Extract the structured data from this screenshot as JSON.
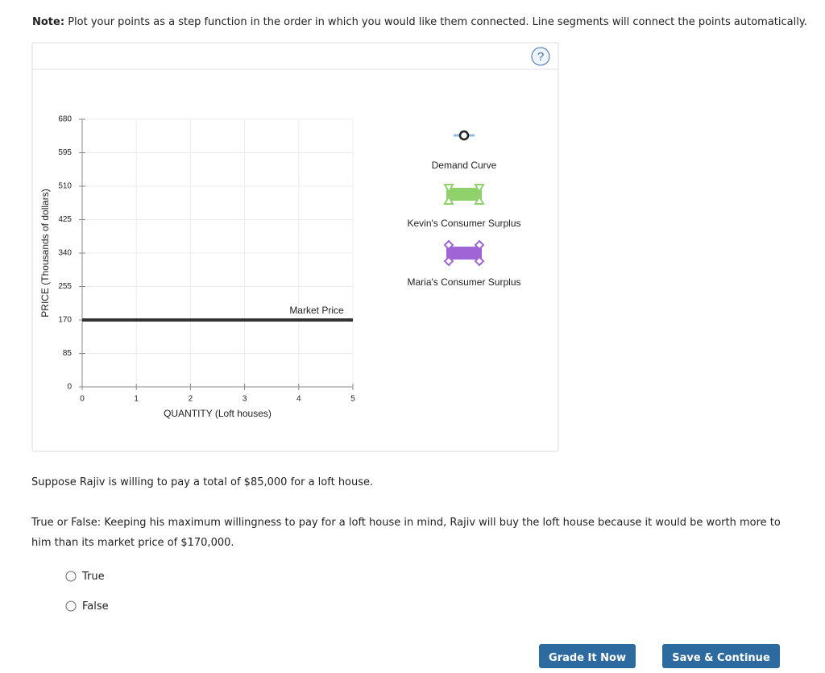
{
  "note": {
    "label": "Note:",
    "text": "Plot your points as a step function in the order in which you would like them connected. Line segments will connect the points automatically."
  },
  "help": "?",
  "chart_data": {
    "type": "line",
    "xlabel": "QUANTITY (Loft houses)",
    "ylabel": "PRICE (Thousands of dollars)",
    "x": [
      0,
      5
    ],
    "series": [
      {
        "name": "Market Price",
        "color": "#333333",
        "values": [
          170,
          170
        ]
      }
    ],
    "xlim": [
      0,
      5
    ],
    "xticks": [
      0,
      1,
      2,
      3,
      4,
      5
    ],
    "ylim": [
      0,
      680
    ],
    "yticks": [
      0,
      85,
      170,
      255,
      340,
      425,
      510,
      595,
      680
    ],
    "grid": true
  },
  "tools": [
    {
      "label": "Demand Curve"
    },
    {
      "label": "Kevin's Consumer Surplus"
    },
    {
      "label": "Maria's Consumer Surplus"
    }
  ],
  "scenario": "Suppose Rajiv is willing to pay a total of $85,000 for a loft house.",
  "question": "True or False: Keeping his maximum willingness to pay for a loft house in mind, Rajiv will buy the loft house because it would be worth more to him than its market price of $170,000.",
  "options": [
    "True",
    "False"
  ],
  "buttons": [
    "Grade It Now",
    "Save & Continue"
  ]
}
